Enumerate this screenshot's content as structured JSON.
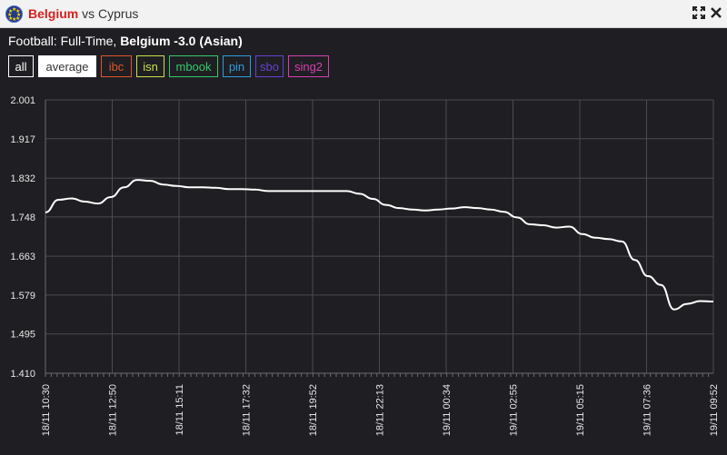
{
  "window": {
    "home_team": "Belgium",
    "separator": "vs",
    "away_team": "Cyprus",
    "icons": [
      "flag-icon",
      "expand-icon",
      "close-icon"
    ]
  },
  "subtitle": {
    "prefix": "Football: Full-Time,",
    "market": "Belgium -3.0 (Asian)"
  },
  "filters": [
    {
      "label": "all",
      "color": "#ffffff",
      "bg": "#1f1f23",
      "text": "#ffffff"
    },
    {
      "label": "average",
      "color": "#ffffff",
      "bg": "#ffffff",
      "text": "#333333"
    },
    {
      "label": "ibc",
      "color": "#e0552a",
      "bg": "#1f1f23",
      "text": "#e0552a"
    },
    {
      "label": "isn",
      "color": "#c8e04a",
      "bg": "#1f1f23",
      "text": "#c8e04a"
    },
    {
      "label": "mbook",
      "color": "#35c96a",
      "bg": "#1f1f23",
      "text": "#35c96a"
    },
    {
      "label": "pin",
      "color": "#2f9be0",
      "bg": "#1f1f23",
      "text": "#2f9be0"
    },
    {
      "label": "sbo",
      "color": "#6a3fcf",
      "bg": "#1f1f23",
      "text": "#6a3fcf"
    },
    {
      "label": "sing2",
      "color": "#d63fb0",
      "bg": "#1f1f23",
      "text": "#d63fb0"
    }
  ],
  "chart_data": {
    "type": "line",
    "title": "",
    "xlabel": "",
    "ylabel": "",
    "ylim": [
      1.41,
      2.001
    ],
    "y_ticks": [
      "2.001",
      "1.917",
      "1.832",
      "1.748",
      "1.663",
      "1.579",
      "1.495",
      "1.410"
    ],
    "x_ticks": [
      "18/11 10:30",
      "18/11 12:50",
      "18/11 15:11",
      "18/11 17:32",
      "18/11 19:52",
      "18/11 22:13",
      "19/11 00:34",
      "19/11 02:55",
      "19/11 05:15",
      "19/11 07:36",
      "19/11 09:52"
    ],
    "grid": true,
    "line_color": "#ffffff",
    "series": [
      {
        "values": [
          1.758,
          1.785,
          1.788,
          1.781,
          1.777,
          1.791,
          1.812,
          1.828,
          1.826,
          1.818,
          1.815,
          1.812,
          1.812,
          1.811,
          1.808,
          1.808,
          1.807,
          1.804,
          1.804,
          1.804,
          1.804,
          1.804,
          1.804,
          1.804,
          1.798,
          1.787,
          1.774,
          1.767,
          1.764,
          1.762,
          1.764,
          1.766,
          1.769,
          1.767,
          1.764,
          1.759,
          1.747,
          1.732,
          1.73,
          1.725,
          1.727,
          1.711,
          1.703,
          1.7,
          1.695,
          1.655,
          1.62,
          1.601,
          1.548,
          1.56,
          1.566,
          1.565
        ]
      }
    ]
  }
}
